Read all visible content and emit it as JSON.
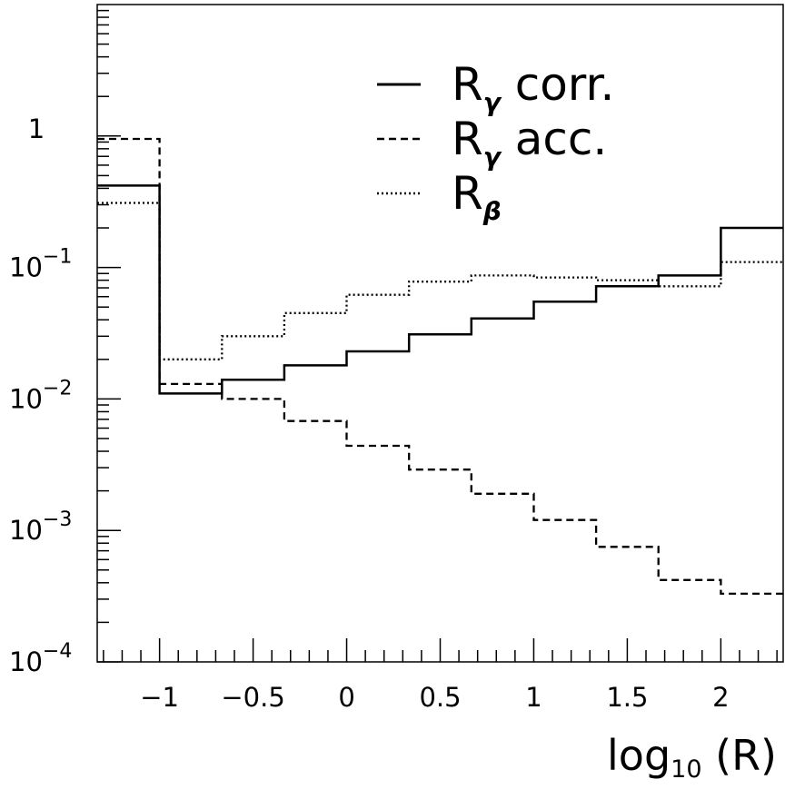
{
  "chart_data": {
    "type": "line",
    "step": true,
    "x_bins": [
      -1.3333,
      -1.0,
      -0.6667,
      -0.3333,
      0.0,
      0.3333,
      0.6667,
      1.0,
      1.3333,
      1.6667,
      2.0,
      2.3333
    ],
    "series": [
      {
        "name": "R_γ corr.",
        "name_main": "R",
        "name_sub": "γ",
        "name_suffix": " corr.",
        "line_style": "solid",
        "values": [
          0.42,
          0.011,
          0.014,
          0.018,
          0.023,
          0.031,
          0.041,
          0.055,
          0.072,
          0.087,
          0.2
        ]
      },
      {
        "name": "R_γ acc.",
        "name_main": "R",
        "name_sub": "γ",
        "name_suffix": " acc.",
        "line_style": "dashed",
        "values": [
          0.95,
          0.013,
          0.01,
          0.0068,
          0.0044,
          0.0029,
          0.0019,
          0.0012,
          0.00075,
          0.00042,
          0.00033
        ]
      },
      {
        "name": "R_β",
        "name_main": "R",
        "name_sub": "β",
        "name_suffix": "",
        "line_style": "dotted",
        "values": [
          0.31,
          0.02,
          0.03,
          0.045,
          0.062,
          0.078,
          0.087,
          0.084,
          0.08,
          0.072,
          0.11
        ]
      }
    ],
    "xlim": [
      -1.3333,
      2.3333
    ],
    "ylim": [
      0.0001,
      10
    ],
    "yscale": "log",
    "x_ticks": [
      {
        "v": -1,
        "label": "−1"
      },
      {
        "v": -0.5,
        "label": "−0.5"
      },
      {
        "v": 0,
        "label": "0"
      },
      {
        "v": 0.5,
        "label": "0.5"
      },
      {
        "v": 1,
        "label": "1"
      },
      {
        "v": 1.5,
        "label": "1.5"
      },
      {
        "v": 2,
        "label": "2"
      }
    ],
    "y_ticks": [
      {
        "v": 1,
        "base": "1",
        "exp": ""
      },
      {
        "v": 0.1,
        "base": "10",
        "exp": "−1"
      },
      {
        "v": 0.01,
        "base": "10",
        "exp": "−2"
      },
      {
        "v": 0.001,
        "base": "10",
        "exp": "−3"
      },
      {
        "v": 0.0001,
        "base": "10",
        "exp": "−4"
      }
    ],
    "xlabel_main": "log",
    "xlabel_sub": "10",
    "xlabel_suffix": " (R)",
    "title": "",
    "ylabel": "",
    "grid": false,
    "legend": "top-right"
  }
}
